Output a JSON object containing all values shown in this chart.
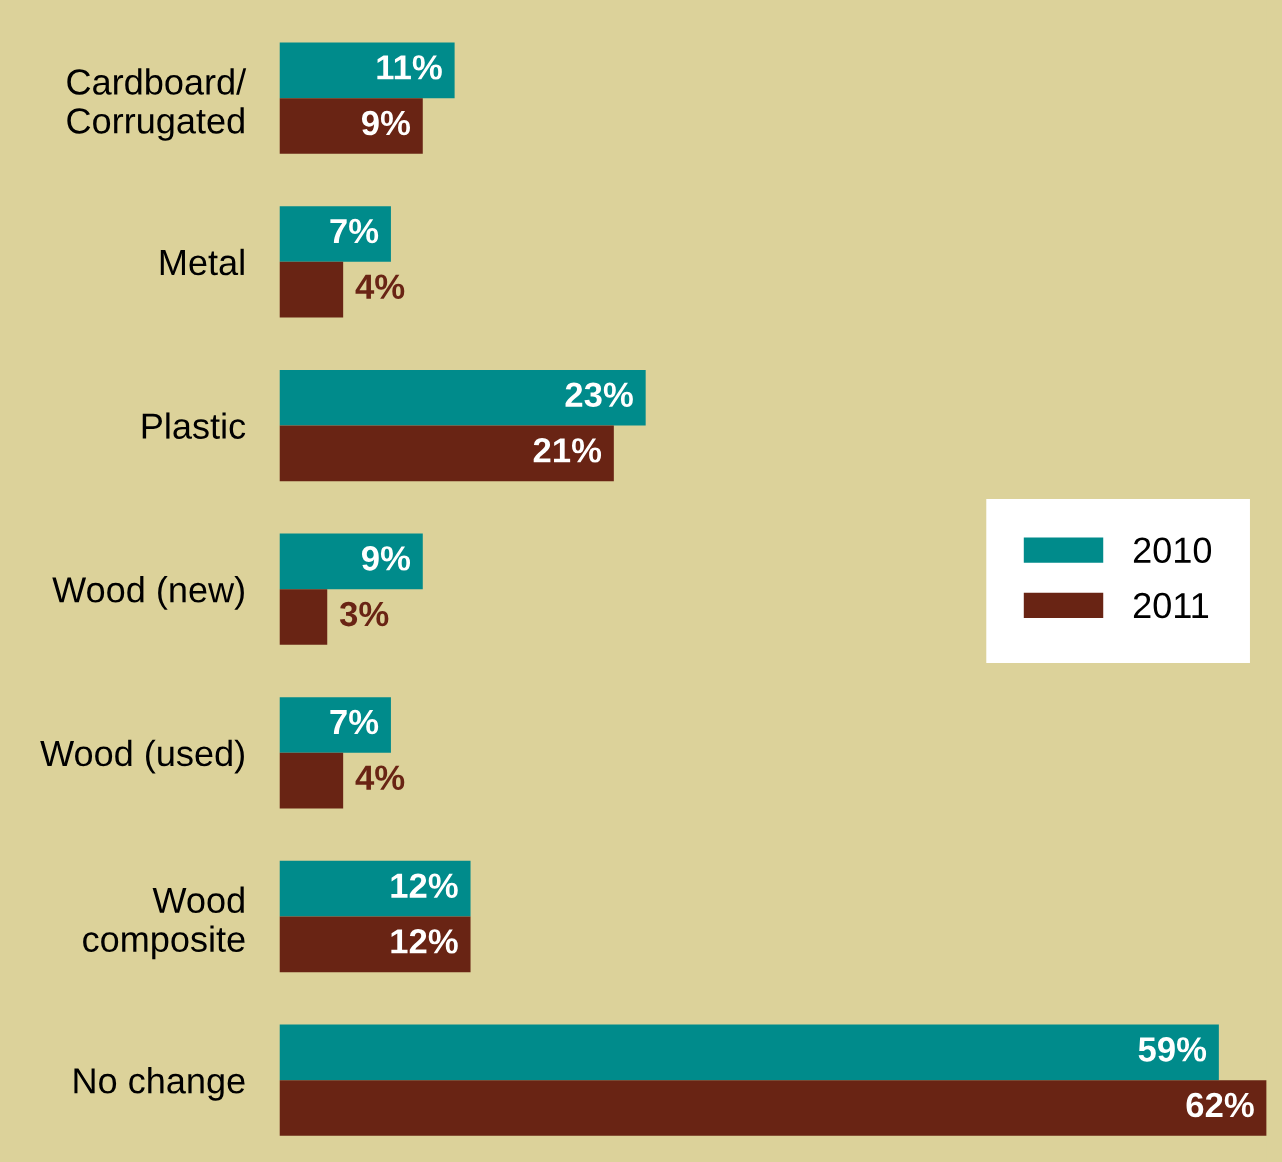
{
  "chart_data": {
    "type": "bar",
    "orientation": "horizontal",
    "categories": [
      "Cardboard/\nCorrugated",
      "Metal",
      "Plastic",
      "Wood (new)",
      "Wood (used)",
      "Wood\ncomposite",
      "No change"
    ],
    "series": [
      {
        "name": "2010",
        "color": "#008b8b",
        "values": [
          11,
          7,
          23,
          9,
          7,
          12,
          59
        ],
        "value_labels": [
          "11%",
          "7%",
          "23%",
          "9%",
          "7%",
          "12%",
          "59%"
        ]
      },
      {
        "name": "2011",
        "color": "#692414",
        "values": [
          9,
          4,
          21,
          3,
          4,
          12,
          62
        ],
        "value_labels": [
          "9%",
          "4%",
          "21%",
          "3%",
          "4%",
          "12%",
          "62%"
        ]
      }
    ],
    "legend": "right",
    "grid": false
  }
}
